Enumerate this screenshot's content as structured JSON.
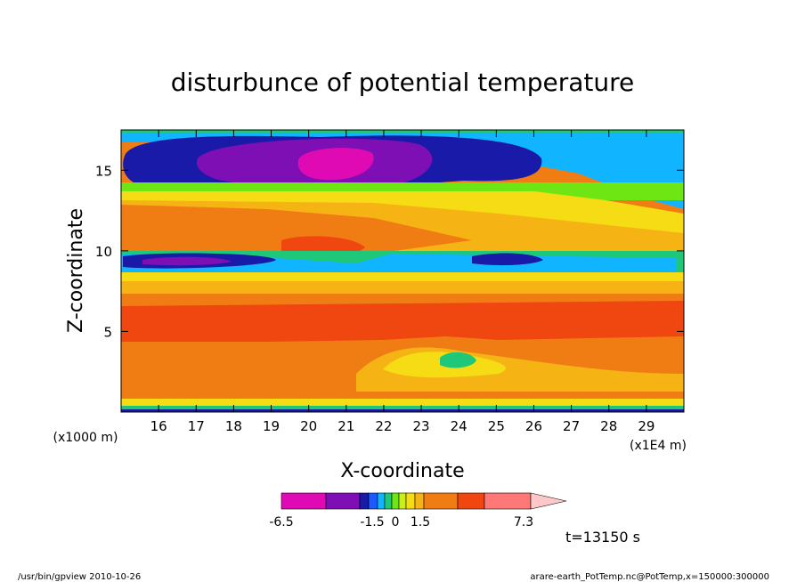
{
  "chart_data": {
    "type": "heatmap",
    "title": "disturbunce of potential temperature",
    "xlabel": "X-coordinate",
    "ylabel": "Z-coordinate",
    "x_unit": "(x1E4 m)",
    "y_unit": "(x1000 m)",
    "xlim": [
      15.0,
      30.0
    ],
    "ylim": [
      0.0,
      17.5
    ],
    "x_ticks": [
      "16",
      "17",
      "18",
      "19",
      "20",
      "21",
      "22",
      "23",
      "24",
      "25",
      "26",
      "27",
      "28",
      "29"
    ],
    "y_ticks": [
      "5",
      "10",
      "15"
    ],
    "colorbar": {
      "tick_labels": [
        "-6.5",
        "-1.5",
        "0",
        "1.5",
        "7.3"
      ],
      "colors": [
        "#e00ab4",
        "#7d0fb4",
        "#1a1aa8",
        "#1a5aff",
        "#10b4ff",
        "#1ec878",
        "#6ee614",
        "#c8f014",
        "#f5dc14",
        "#f5b414",
        "#f07d14",
        "#f0460f",
        "#ff7878",
        "#ffc8c8"
      ]
    },
    "time_label": "t=13150 s"
  },
  "footer": {
    "left": "/usr/bin/gpview   2010-10-26",
    "right": "arare-earth_PotTemp.nc@PotTemp,x=150000:300000"
  }
}
